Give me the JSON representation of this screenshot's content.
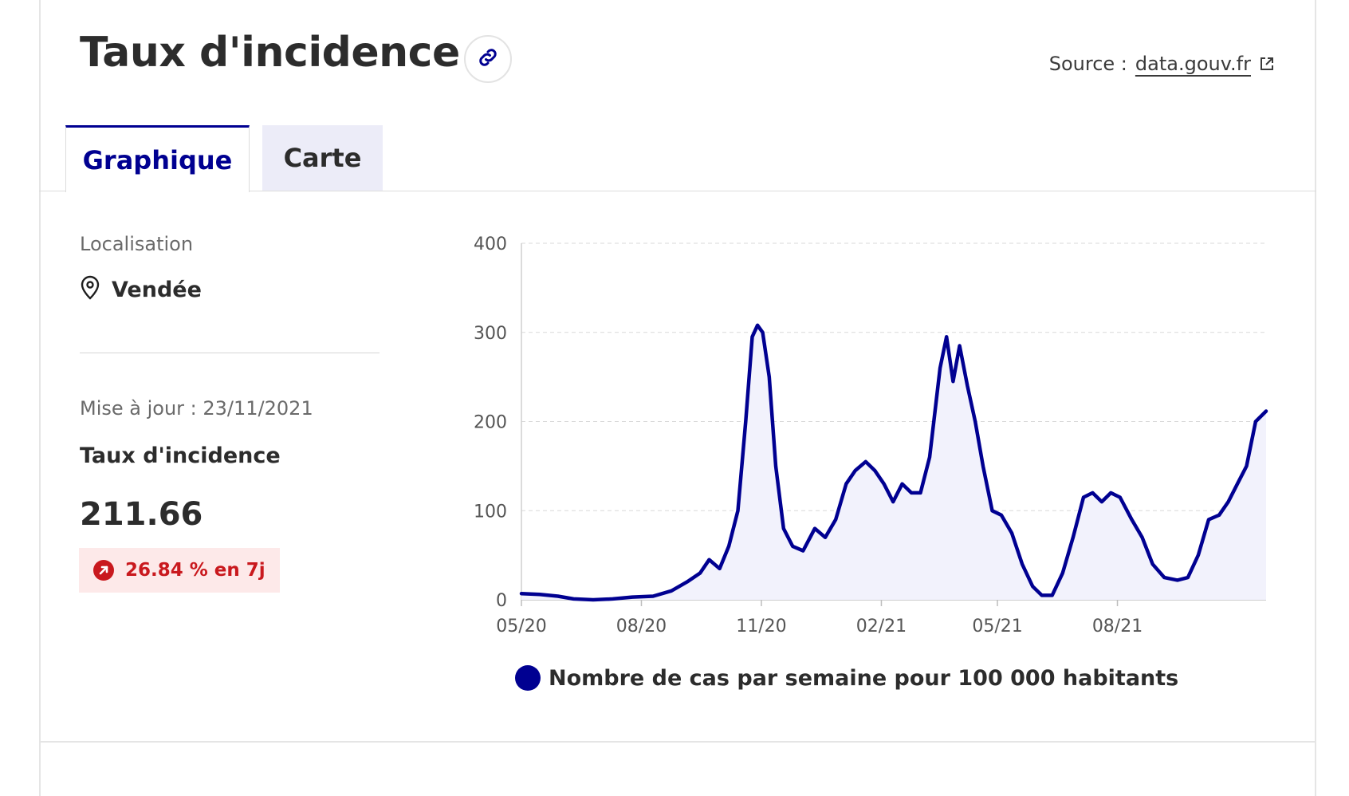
{
  "header": {
    "title": "Taux d'incidence",
    "source_label": "Source :",
    "source_link": "data.gouv.fr"
  },
  "tabs": [
    {
      "label": "Graphique",
      "active": true
    },
    {
      "label": "Carte",
      "active": false
    }
  ],
  "sidebar": {
    "location_label": "Localisation",
    "location_value": "Vendée",
    "update_text": "Mise à jour : 23/11/2021",
    "metric_name": "Taux d'incidence",
    "metric_value": "211.66",
    "change_text": "26.84 % en 7j"
  },
  "icons": {
    "link": "link-icon",
    "external": "external-link-icon",
    "location": "map-pin-icon",
    "trend": "arrow-up-right-icon"
  },
  "colors": {
    "accent": "#000091",
    "fill": "#f2f2fc",
    "alert": "#c9191e",
    "alert_bg": "#fde9e9"
  },
  "chart_data": {
    "type": "area",
    "title": "",
    "xlabel": "",
    "ylabel": "",
    "ylim": [
      0,
      400
    ],
    "yticks": [
      0,
      100,
      200,
      300,
      400
    ],
    "xticks": [
      "05/20",
      "08/20",
      "11/20",
      "02/21",
      "05/21",
      "08/21"
    ],
    "xlim": [
      "2020-05-01",
      "2021-11-23"
    ],
    "grid": true,
    "legend_position": "bottom",
    "series": [
      {
        "name": "Nombre de cas par semaine pour 100 000 habitants",
        "color": "#000091",
        "points": [
          [
            "2020-05-01",
            7
          ],
          [
            "2020-05-15",
            6
          ],
          [
            "2020-05-29",
            4
          ],
          [
            "2020-06-10",
            1
          ],
          [
            "2020-06-25",
            0
          ],
          [
            "2020-07-10",
            1
          ],
          [
            "2020-07-25",
            3
          ],
          [
            "2020-08-10",
            4
          ],
          [
            "2020-08-24",
            10
          ],
          [
            "2020-09-05",
            20
          ],
          [
            "2020-09-15",
            30
          ],
          [
            "2020-09-22",
            45
          ],
          [
            "2020-09-30",
            35
          ],
          [
            "2020-10-07",
            60
          ],
          [
            "2020-10-14",
            100
          ],
          [
            "2020-10-20",
            200
          ],
          [
            "2020-10-25",
            295
          ],
          [
            "2020-10-29",
            308
          ],
          [
            "2020-11-02",
            300
          ],
          [
            "2020-11-07",
            250
          ],
          [
            "2020-11-12",
            150
          ],
          [
            "2020-11-18",
            80
          ],
          [
            "2020-11-25",
            60
          ],
          [
            "2020-12-03",
            55
          ],
          [
            "2020-12-12",
            80
          ],
          [
            "2020-12-20",
            70
          ],
          [
            "2020-12-28",
            90
          ],
          [
            "2021-01-05",
            130
          ],
          [
            "2021-01-12",
            145
          ],
          [
            "2021-01-20",
            155
          ],
          [
            "2021-01-27",
            145
          ],
          [
            "2021-02-03",
            130
          ],
          [
            "2021-02-10",
            110
          ],
          [
            "2021-02-17",
            130
          ],
          [
            "2021-02-24",
            120
          ],
          [
            "2021-03-03",
            120
          ],
          [
            "2021-03-10",
            160
          ],
          [
            "2021-03-18",
            260
          ],
          [
            "2021-03-23",
            295
          ],
          [
            "2021-03-28",
            245
          ],
          [
            "2021-04-02",
            285
          ],
          [
            "2021-04-08",
            240
          ],
          [
            "2021-04-14",
            200
          ],
          [
            "2021-04-20",
            150
          ],
          [
            "2021-04-27",
            100
          ],
          [
            "2021-05-04",
            95
          ],
          [
            "2021-05-12",
            75
          ],
          [
            "2021-05-20",
            40
          ],
          [
            "2021-05-28",
            15
          ],
          [
            "2021-06-04",
            5
          ],
          [
            "2021-06-12",
            5
          ],
          [
            "2021-06-20",
            30
          ],
          [
            "2021-06-28",
            70
          ],
          [
            "2021-07-06",
            115
          ],
          [
            "2021-07-13",
            120
          ],
          [
            "2021-07-20",
            110
          ],
          [
            "2021-07-27",
            120
          ],
          [
            "2021-08-03",
            115
          ],
          [
            "2021-08-12",
            90
          ],
          [
            "2021-08-20",
            70
          ],
          [
            "2021-08-28",
            40
          ],
          [
            "2021-09-06",
            25
          ],
          [
            "2021-09-16",
            22
          ],
          [
            "2021-09-24",
            25
          ],
          [
            "2021-10-02",
            50
          ],
          [
            "2021-10-10",
            90
          ],
          [
            "2021-10-18",
            95
          ],
          [
            "2021-10-25",
            110
          ],
          [
            "2021-11-01",
            130
          ],
          [
            "2021-11-08",
            150
          ],
          [
            "2021-11-15",
            200
          ],
          [
            "2021-11-23",
            211.66
          ]
        ]
      }
    ]
  }
}
